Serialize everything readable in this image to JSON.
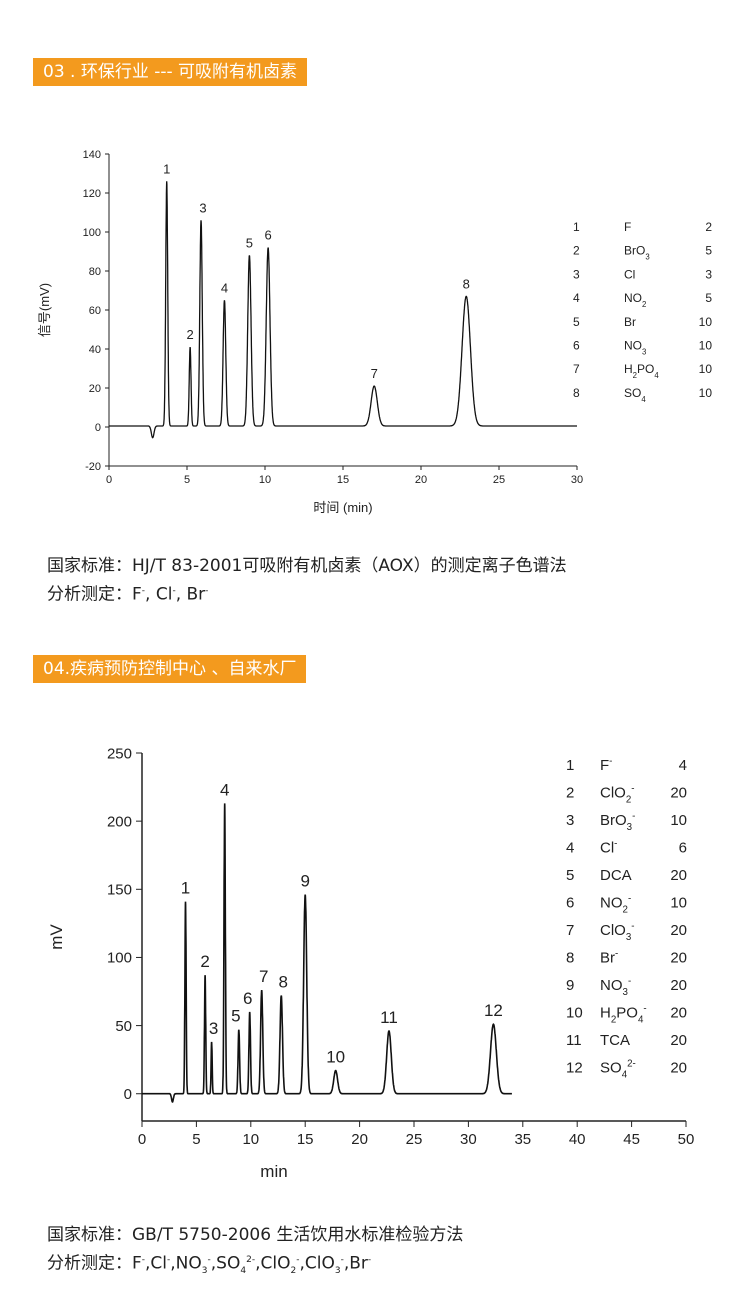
{
  "section1": {
    "badge": "03 . 环保行业 --- 可吸附有机卤素",
    "standard": "国家标准：HJ/T 83-2001可吸附有机卤素（AOX）的测定离子色谱法",
    "analysis_label": "分析测定：",
    "analysis_items": [
      "F",
      "-",
      ",  Cl",
      "-",
      ", Br",
      "-"
    ]
  },
  "section2": {
    "badge": "04.疾病预防控制中心 、自来水厂",
    "standard": "国家标准：GB/T 5750-2006 生活饮用水标准检验方法",
    "analysis_label": "分析测定：",
    "analysis_parts": [
      "F",
      "-",
      ",Cl",
      "-",
      ",NO",
      "3",
      "-",
      ",SO",
      "4",
      "2-",
      ",ClO",
      "2",
      "-",
      ",ClO",
      "3",
      "-",
      ",Br",
      "-"
    ]
  },
  "chart_data": [
    {
      "type": "line",
      "xlabel": "时间 (min)",
      "ylabel": "信号(mV)",
      "xlim": [
        0,
        30
      ],
      "ylim": [
        -20,
        140
      ],
      "xticks": [
        0,
        5,
        10,
        15,
        20,
        25,
        30
      ],
      "yticks": [
        -20,
        0,
        20,
        40,
        60,
        80,
        100,
        120,
        140
      ],
      "baseline": 0.5,
      "dip": {
        "x": 2.8,
        "y": -6
      },
      "peaks": [
        {
          "label": "1",
          "x": 3.7,
          "y": 126,
          "width": 0.09
        },
        {
          "label": "2",
          "x": 5.2,
          "y": 41,
          "width": 0.08
        },
        {
          "label": "3",
          "x": 5.9,
          "y": 106,
          "width": 0.11
        },
        {
          "label": "4",
          "x": 7.4,
          "y": 65,
          "width": 0.12
        },
        {
          "label": "5",
          "x": 9.0,
          "y": 88,
          "width": 0.15
        },
        {
          "label": "6",
          "x": 10.2,
          "y": 92,
          "width": 0.17
        },
        {
          "label": "7",
          "x": 17.0,
          "y": 21,
          "width": 0.28
        },
        {
          "label": "8",
          "x": 22.9,
          "y": 67,
          "width": 0.38
        }
      ],
      "legend": [
        {
          "no": "1",
          "ion": "F",
          "sub": "",
          "sup": "",
          "value": "2"
        },
        {
          "no": "2",
          "ion": "BrO",
          "sub": "3",
          "sup": "",
          "value": "5"
        },
        {
          "no": "3",
          "ion": "Cl",
          "sub": "",
          "sup": "",
          "value": "3"
        },
        {
          "no": "4",
          "ion": "NO",
          "sub": "2",
          "sup": "",
          "value": "5"
        },
        {
          "no": "5",
          "ion": "Br",
          "sub": "",
          "sup": "",
          "value": "10"
        },
        {
          "no": "6",
          "ion": "NO",
          "sub": "3",
          "sup": "",
          "value": "10"
        },
        {
          "no": "7",
          "ion": "H",
          "sub": "2",
          "ion2": "PO",
          "sub2": "4",
          "sup": "",
          "value": "10"
        },
        {
          "no": "8",
          "ion": "SO",
          "sub": "4",
          "sup": "",
          "value": "10"
        }
      ]
    },
    {
      "type": "line",
      "xlabel": "min",
      "ylabel": "mV",
      "xlim": [
        0,
        50
      ],
      "ylim": [
        -20,
        250
      ],
      "xticks": [
        0,
        5,
        10,
        15,
        20,
        25,
        30,
        35,
        40,
        45,
        50
      ],
      "yticks": [
        0,
        50,
        100,
        150,
        200,
        250
      ],
      "baseline": 0,
      "end_x": 34,
      "dip": {
        "x": 2.8,
        "y": -6
      },
      "peaks": [
        {
          "label": "1",
          "x": 4.0,
          "y": 141,
          "width": 0.08
        },
        {
          "label": "2",
          "x": 5.8,
          "y": 87,
          "width": 0.08
        },
        {
          "label": "3",
          "x": 6.4,
          "y": 38,
          "width": 0.07
        },
        {
          "label": "4",
          "x": 7.6,
          "y": 213,
          "width": 0.09
        },
        {
          "label": "5",
          "x": 8.9,
          "y": 47,
          "width": 0.1
        },
        {
          "label": "6",
          "x": 9.9,
          "y": 60,
          "width": 0.1
        },
        {
          "label": "7",
          "x": 11.0,
          "y": 76,
          "width": 0.14
        },
        {
          "label": "8",
          "x": 12.8,
          "y": 72,
          "width": 0.16
        },
        {
          "label": "9",
          "x": 15.0,
          "y": 146,
          "width": 0.2
        },
        {
          "label": "10",
          "x": 17.8,
          "y": 17,
          "width": 0.25
        },
        {
          "label": "11",
          "x": 22.7,
          "y": 46,
          "width": 0.3
        },
        {
          "label": "12",
          "x": 32.3,
          "y": 51,
          "width": 0.38
        }
      ],
      "legend": [
        {
          "no": "1",
          "ion": "F",
          "sub": "",
          "sup": "-",
          "value": "4"
        },
        {
          "no": "2",
          "ion": "ClO",
          "sub": "2",
          "sup": "-",
          "value": "20"
        },
        {
          "no": "3",
          "ion": "BrO",
          "sub": "3",
          "sup": "-",
          "value": "10"
        },
        {
          "no": "4",
          "ion": "Cl",
          "sub": "",
          "sup": "-",
          "value": "6"
        },
        {
          "no": "5",
          "ion": "DCA",
          "sub": "",
          "sup": "",
          "value": "20"
        },
        {
          "no": "6",
          "ion": "NO",
          "sub": "2",
          "sup": "-",
          "value": "10"
        },
        {
          "no": "7",
          "ion": "ClO",
          "sub": "3",
          "sup": "-",
          "value": "20"
        },
        {
          "no": "8",
          "ion": "Br",
          "sub": "",
          "sup": "-",
          "value": "20"
        },
        {
          "no": "9",
          "ion": "NO",
          "sub": "3",
          "sup": "-",
          "value": "20"
        },
        {
          "no": "10",
          "ion": "H",
          "sub": "2",
          "ion2": "PO",
          "sub2": "4",
          "sup": "-",
          "value": "20"
        },
        {
          "no": "11",
          "ion": "TCA",
          "sub": "",
          "sup": "",
          "value": "20"
        },
        {
          "no": "12",
          "ion": "SO",
          "sub": "4",
          "sup": "2-",
          "value": "20"
        }
      ]
    }
  ]
}
